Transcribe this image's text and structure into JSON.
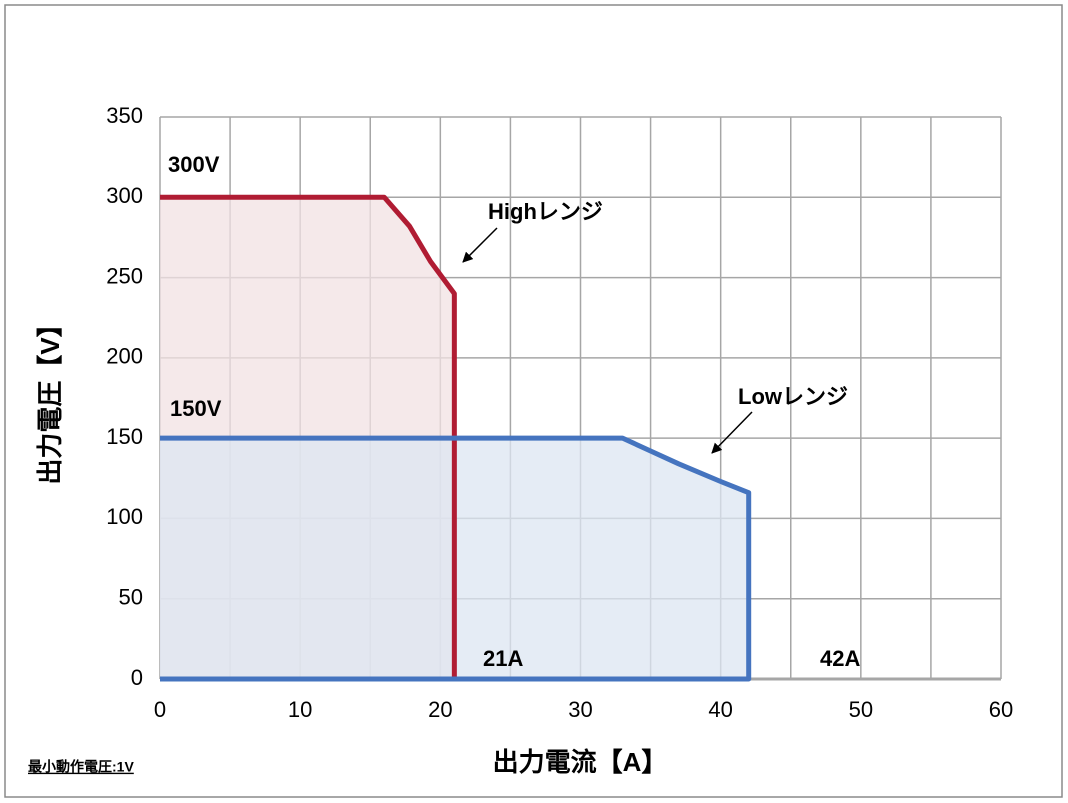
{
  "chart_data": {
    "type": "area",
    "x_title": "出力電流【A】",
    "y_title": "出力電圧【V】",
    "note": "最小動作電圧:1V",
    "annotations": [
      "300V",
      "150V",
      "Highレンジ",
      "Lowレンジ",
      "21A",
      "42A"
    ],
    "xlim": [
      0,
      60
    ],
    "ylim": [
      0,
      350
    ],
    "xticks": [
      0,
      10,
      20,
      30,
      40,
      50,
      60
    ],
    "x_minor_grid": [
      5,
      15,
      25,
      35,
      45,
      55
    ],
    "yticks": [
      0,
      50,
      100,
      150,
      200,
      250,
      300,
      350
    ],
    "grid": true,
    "series": [
      {
        "color": "#b01c33",
        "fill": "#f2e2e3",
        "x": [
          0,
          16,
          17.8,
          19.3,
          21,
          21,
          0
        ],
        "values": [
          300,
          300,
          282,
          260,
          240,
          0,
          0
        ]
      },
      {
        "color": "#4574bf",
        "fill": "#dce5f1",
        "x": [
          0,
          33,
          35,
          37,
          40,
          42,
          42,
          0
        ],
        "values": [
          150,
          150,
          142,
          134,
          123,
          116,
          0,
          0
        ]
      }
    ]
  }
}
